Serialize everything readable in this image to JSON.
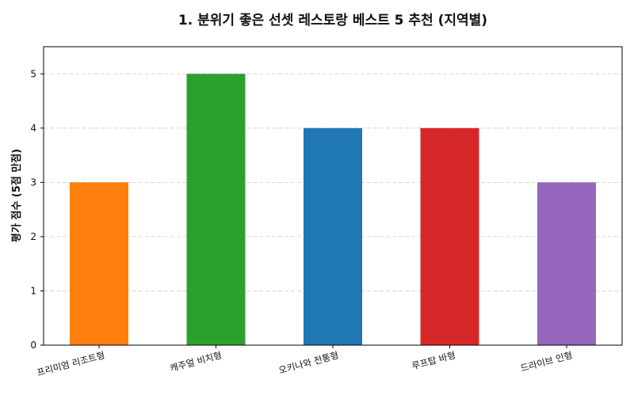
{
  "chart_data": {
    "type": "bar",
    "title": "1. 분위기 좋은 선셋 레스토랑 베스트 5 추천 (지역별)",
    "xlabel": "",
    "ylabel": "평가 점수 (5점 만점)",
    "categories": [
      "프리미엄 리조트형",
      "캐주얼 비치형",
      "오키나와 전통형",
      "루프탑 바형",
      "드라이브 인형"
    ],
    "values": [
      3,
      5,
      4,
      4,
      3
    ],
    "colors": [
      "#ff7f0e",
      "#2ca02c",
      "#1f77b4",
      "#d62728",
      "#9467bd"
    ],
    "ylim": [
      0,
      5.5
    ],
    "yticks": [
      0,
      1,
      2,
      3,
      4,
      5
    ],
    "grid": "y-dashed",
    "legend": "none"
  }
}
